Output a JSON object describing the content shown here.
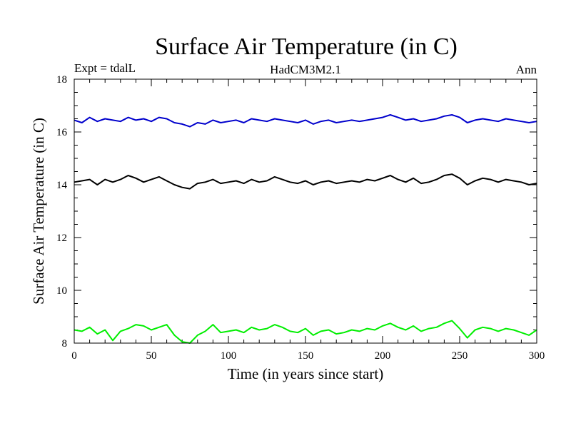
{
  "chart_data": {
    "type": "line",
    "title": "Surface Air Temperature (in C)",
    "subtitle_left": "Expt = tdalL",
    "subtitle_center": "HadCM3M2.1",
    "subtitle_right": "Ann",
    "xlabel": "Time (in years since start)",
    "ylabel": "Surface Air Temperature (in C)",
    "xlim": [
      0,
      300
    ],
    "ylim": [
      8,
      18
    ],
    "x_ticks": [
      0,
      50,
      100,
      150,
      200,
      250,
      300
    ],
    "y_ticks": [
      8,
      10,
      12,
      14,
      16,
      18
    ],
    "x_minor_step": 10,
    "y_minor_step": 0.5,
    "grid": false,
    "series": [
      {
        "name": "blue",
        "color": "#0000cc",
        "x_start": 0,
        "x_step": 5,
        "values": [
          16.45,
          16.35,
          16.55,
          16.4,
          16.5,
          16.45,
          16.4,
          16.55,
          16.45,
          16.5,
          16.4,
          16.55,
          16.5,
          16.35,
          16.3,
          16.2,
          16.35,
          16.3,
          16.45,
          16.35,
          16.4,
          16.45,
          16.35,
          16.5,
          16.45,
          16.4,
          16.5,
          16.45,
          16.4,
          16.35,
          16.45,
          16.3,
          16.4,
          16.45,
          16.35,
          16.4,
          16.45,
          16.4,
          16.45,
          16.5,
          16.55,
          16.65,
          16.55,
          16.45,
          16.5,
          16.4,
          16.45,
          16.5,
          16.6,
          16.65,
          16.55,
          16.35,
          16.45,
          16.5,
          16.45,
          16.4,
          16.5,
          16.45,
          16.4,
          16.35,
          16.4
        ]
      },
      {
        "name": "black",
        "color": "#000000",
        "x_start": 0,
        "x_step": 5,
        "values": [
          14.1,
          14.15,
          14.2,
          14.0,
          14.2,
          14.1,
          14.2,
          14.35,
          14.25,
          14.1,
          14.2,
          14.3,
          14.15,
          14.0,
          13.9,
          13.85,
          14.05,
          14.1,
          14.2,
          14.05,
          14.1,
          14.15,
          14.05,
          14.2,
          14.1,
          14.15,
          14.3,
          14.2,
          14.1,
          14.05,
          14.15,
          14.0,
          14.1,
          14.15,
          14.05,
          14.1,
          14.15,
          14.1,
          14.2,
          14.15,
          14.25,
          14.35,
          14.2,
          14.1,
          14.25,
          14.05,
          14.1,
          14.2,
          14.35,
          14.4,
          14.25,
          14.0,
          14.15,
          14.25,
          14.2,
          14.1,
          14.2,
          14.15,
          14.1,
          14.0,
          14.05
        ]
      },
      {
        "name": "green",
        "color": "#00ee00",
        "x_start": 0,
        "x_step": 5,
        "values": [
          8.5,
          8.45,
          8.6,
          8.35,
          8.5,
          8.1,
          8.45,
          8.55,
          8.7,
          8.65,
          8.5,
          8.6,
          8.7,
          8.3,
          8.05,
          8.0,
          8.3,
          8.45,
          8.7,
          8.4,
          8.45,
          8.5,
          8.4,
          8.6,
          8.5,
          8.55,
          8.7,
          8.6,
          8.45,
          8.4,
          8.55,
          8.3,
          8.45,
          8.5,
          8.35,
          8.4,
          8.5,
          8.45,
          8.55,
          8.5,
          8.65,
          8.75,
          8.6,
          8.5,
          8.65,
          8.45,
          8.55,
          8.6,
          8.75,
          8.85,
          8.55,
          8.2,
          8.5,
          8.6,
          8.55,
          8.45,
          8.55,
          8.5,
          8.4,
          8.3,
          8.5
        ]
      }
    ]
  }
}
